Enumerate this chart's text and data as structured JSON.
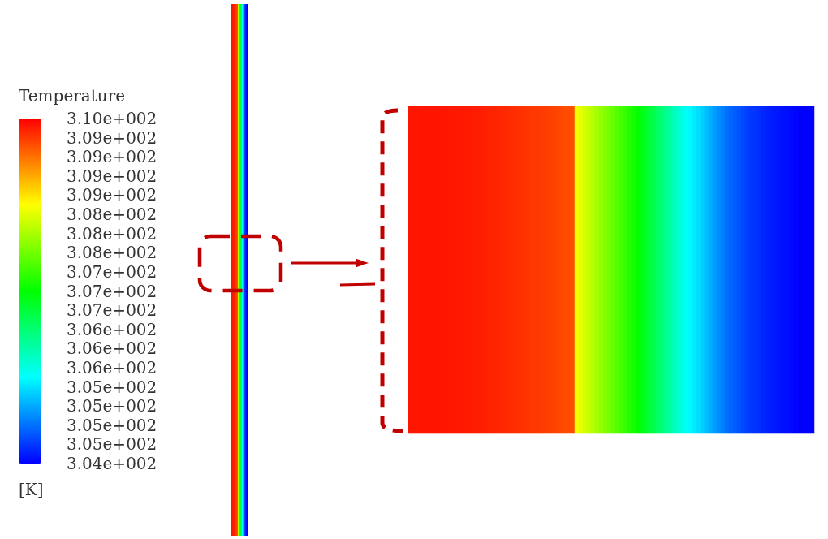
{
  "chart_data": {
    "type": "heatmap",
    "clabel": "Temperature",
    "annotations": [
      "[K]"
    ],
    "categories": [
      null,
      null,
      null,
      null,
      null,
      null,
      null,
      null,
      null,
      null,
      null,
      null,
      null,
      null,
      null,
      null,
      null,
      null,
      null,
      null,
      null,
      null,
      null,
      null,
      null,
      null,
      null,
      null,
      null,
      null,
      null,
      null,
      null,
      null,
      null,
      null,
      null,
      null,
      null,
      null,
      null,
      null,
      null,
      null,
      null,
      null,
      null,
      null,
      null,
      null,
      null,
      null,
      null,
      null,
      null,
      null,
      null,
      null,
      null,
      null,
      null,
      null,
      null,
      null,
      null,
      null,
      null,
      null,
      null,
      null,
      null,
      null,
      null,
      null,
      null,
      null,
      null,
      null,
      null,
      null,
      null,
      null,
      null,
      null,
      null,
      null,
      null,
      null,
      null,
      null,
      null,
      null,
      null,
      null,
      null,
      null,
      null,
      null,
      null,
      null
    ],
    "y_categories": [
      null
    ],
    "cells": [
      [
        309.68,
        309.68,
        309.68,
        309.69,
        309.69,
        309.69,
        309.69,
        309.69,
        309.68,
        309.68,
        309.67,
        309.67,
        309.66,
        309.66,
        309.65,
        309.65,
        309.64,
        309.64,
        309.63,
        309.62,
        309.61,
        309.6,
        309.59,
        309.58,
        309.57,
        309.56,
        309.55,
        309.54,
        309.52,
        309.51,
        309.5,
        309.49,
        309.48,
        309.47,
        309.46,
        309.45,
        309.43,
        309.41,
        309.39,
        309.38,
        309.38,
        308.34,
        308.25,
        308.16,
        308.08,
        307.99,
        307.9,
        307.81,
        307.73,
        307.64,
        307.55,
        307.46,
        307.38,
        307.29,
        307.2,
        307.11,
        307.03,
        306.92,
        306.8,
        306.69,
        306.58,
        306.46,
        306.35,
        306.23,
        306.12,
        306.0,
        305.89,
        305.77,
        305.66,
        305.56,
        305.49,
        305.42,
        305.33,
        305.24,
        305.15,
        305.06,
        304.98,
        304.9,
        304.82,
        304.76,
        304.71,
        304.66,
        304.6,
        304.55,
        304.51,
        304.48,
        304.45,
        304.41,
        304.38,
        304.35,
        304.33,
        304.31,
        304.29,
        304.27,
        304.25,
        304.22,
        304.2,
        304.2,
        304.2,
        304.2
      ]
    ],
    "clim": [
      304.2,
      309.8
    ],
    "cticks": [
      {
        "value": 304.2,
        "label": "3.04e+002"
      },
      {
        "value": 304.51,
        "label": "3.05e+002"
      },
      {
        "value": 304.82,
        "label": "3.05e+002"
      },
      {
        "value": 305.13,
        "label": "3.05e+002"
      },
      {
        "value": 305.44,
        "label": "3.05e+002"
      },
      {
        "value": 305.76,
        "label": "3.06e+002"
      },
      {
        "value": 306.07,
        "label": "3.06e+002"
      },
      {
        "value": 306.38,
        "label": "3.06e+002"
      },
      {
        "value": 306.69,
        "label": "3.07e+002"
      },
      {
        "value": 307.0,
        "label": "3.07e+002"
      },
      {
        "value": 307.31,
        "label": "3.07e+002"
      },
      {
        "value": 307.62,
        "label": "3.08e+002"
      },
      {
        "value": 307.93,
        "label": "3.08e+002"
      },
      {
        "value": 308.24,
        "label": "3.08e+002"
      },
      {
        "value": 308.56,
        "label": "3.09e+002"
      },
      {
        "value": 308.87,
        "label": "3.09e+002"
      },
      {
        "value": 309.18,
        "label": "3.09e+002"
      },
      {
        "value": 309.49,
        "label": "3.09e+002"
      },
      {
        "value": 309.8,
        "label": "3.10e+002"
      }
    ]
  }
}
